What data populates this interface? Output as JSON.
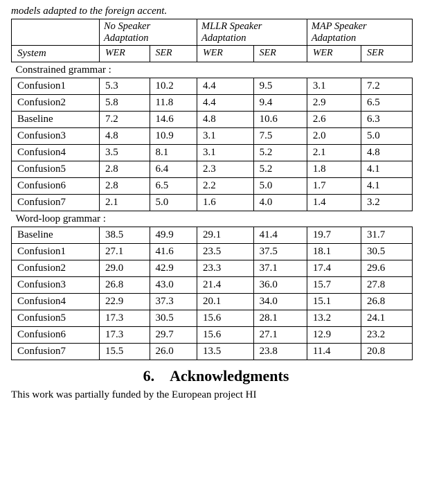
{
  "caption": "models adapted to the foreign accent.",
  "table": {
    "col_system_label": "System",
    "header_groups": [
      "No Speaker Adaptation",
      "MLLR Speaker Adaptation",
      "MAP Speaker Adaptation"
    ],
    "sub_headers": [
      "WER",
      "SER"
    ],
    "sections": [
      {
        "title": "Constrained grammar :",
        "rows": [
          {
            "system": "Confusion1",
            "vals": [
              "5.3",
              "10.2",
              "4.4",
              "9.5",
              "3.1",
              "7.2"
            ]
          },
          {
            "system": "Confusion2",
            "vals": [
              "5.8",
              "11.8",
              "4.4",
              "9.4",
              "2.9",
              "6.5"
            ]
          },
          {
            "system": "Baseline",
            "vals": [
              "7.2",
              "14.6",
              "4.8",
              "10.6",
              "2.6",
              "6.3"
            ]
          },
          {
            "system": "Confusion3",
            "vals": [
              "4.8",
              "10.9",
              "3.1",
              "7.5",
              "2.0",
              "5.0"
            ]
          },
          {
            "system": "Confusion4",
            "vals": [
              "3.5",
              "8.1",
              "3.1",
              "5.2",
              "2.1",
              "4.8"
            ]
          },
          {
            "system": "Confusion5",
            "vals": [
              "2.8",
              "6.4",
              "2.3",
              "5.2",
              "1.8",
              "4.1"
            ]
          },
          {
            "system": "Confusion6",
            "vals": [
              "2.8",
              "6.5",
              "2.2",
              "5.0",
              "1.7",
              "4.1"
            ]
          },
          {
            "system": "Confusion7",
            "vals": [
              "2.1",
              "5.0",
              "1.6",
              "4.0",
              "1.4",
              "3.2"
            ]
          }
        ]
      },
      {
        "title": "Word-loop grammar :",
        "rows": [
          {
            "system": "Baseline",
            "vals": [
              "38.5",
              "49.9",
              "29.1",
              "41.4",
              "19.7",
              "31.7"
            ]
          },
          {
            "system": "Confusion1",
            "vals": [
              "27.1",
              "41.6",
              "23.5",
              "37.5",
              "18.1",
              "30.5"
            ]
          },
          {
            "system": "Confusion2",
            "vals": [
              "29.0",
              "42.9",
              "23.3",
              "37.1",
              "17.4",
              "29.6"
            ]
          },
          {
            "system": "Confusion3",
            "vals": [
              "26.8",
              "43.0",
              "21.4",
              "36.0",
              "15.7",
              "27.8"
            ]
          },
          {
            "system": "Confusion4",
            "vals": [
              "22.9",
              "37.3",
              "20.1",
              "34.0",
              "15.1",
              "26.8"
            ]
          },
          {
            "system": "Confusion5",
            "vals": [
              "17.3",
              "30.5",
              "15.6",
              "28.1",
              "13.2",
              "24.1"
            ]
          },
          {
            "system": "Confusion6",
            "vals": [
              "17.3",
              "29.7",
              "15.6",
              "27.1",
              "12.9",
              "23.2"
            ]
          },
          {
            "system": "Confusion7",
            "vals": [
              "15.5",
              "26.0",
              "13.5",
              "23.8",
              "11.4",
              "20.8"
            ]
          }
        ]
      }
    ],
    "col_widths": {
      "system": 110,
      "num": 78
    }
  },
  "ack_heading": "6. Acknowledgments",
  "trailing_text": "This work was partially funded by the European project HI"
}
